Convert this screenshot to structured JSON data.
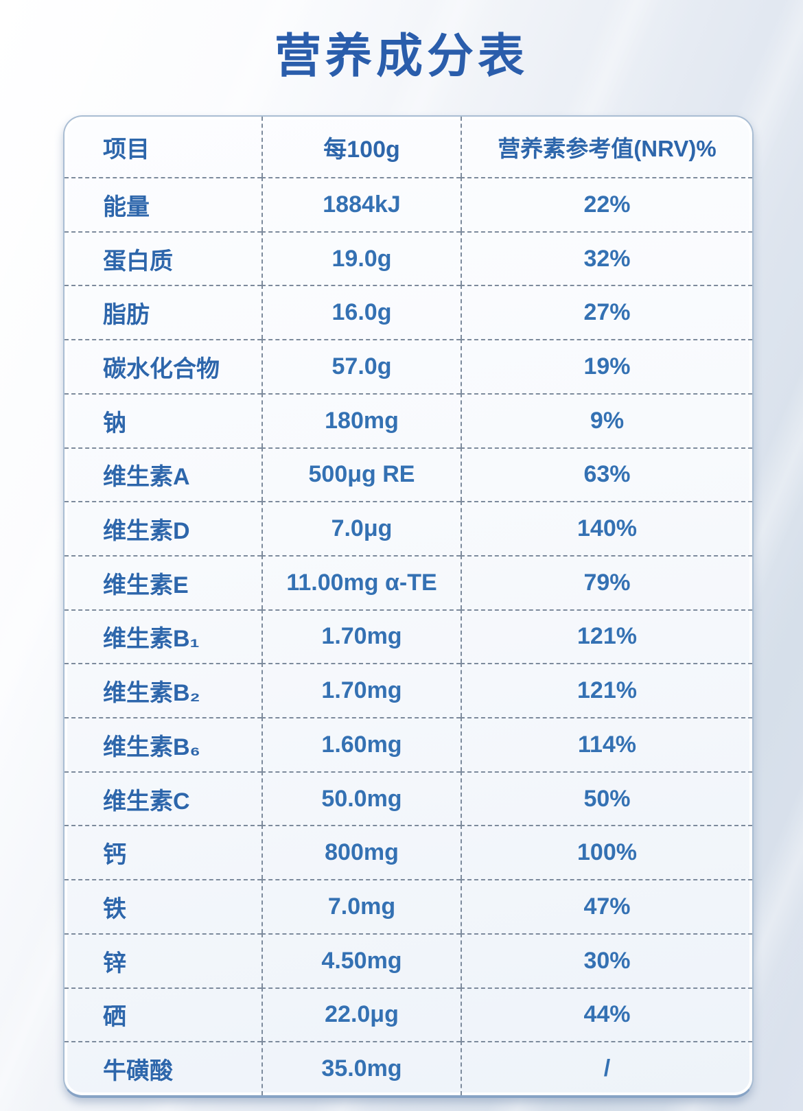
{
  "title": "营养成分表",
  "table": {
    "headers": [
      "项目",
      "每100g",
      "营养素参考值(NRV)%"
    ],
    "rows": [
      [
        "能量",
        "1884kJ",
        "22%"
      ],
      [
        "蛋白质",
        "19.0g",
        "32%"
      ],
      [
        "脂肪",
        "16.0g",
        "27%"
      ],
      [
        "碳水化合物",
        "57.0g",
        "19%"
      ],
      [
        "钠",
        "180mg",
        "9%"
      ],
      [
        "维生素A",
        "500μg RE",
        "63%"
      ],
      [
        "维生素D",
        "7.0μg",
        "140%"
      ],
      [
        "维生素E",
        "11.00mg α-TE",
        "79%"
      ],
      [
        "维生素B₁",
        "1.70mg",
        "121%"
      ],
      [
        "维生素B₂",
        "1.70mg",
        "121%"
      ],
      [
        "维生素B₆",
        "1.60mg",
        "114%"
      ],
      [
        "维生素C",
        "50.0mg",
        "50%"
      ],
      [
        "钙",
        "800mg",
        "100%"
      ],
      [
        "铁",
        "7.0mg",
        "47%"
      ],
      [
        "锌",
        "4.50mg",
        "30%"
      ],
      [
        "硒",
        "22.0μg",
        "44%"
      ],
      [
        "牛磺酸",
        "35.0mg",
        "/"
      ]
    ]
  },
  "colors": {
    "title_blue": "#2a5dab",
    "label_blue": "#2d66ab",
    "value_blue": "#3471b3",
    "dash": "#7c8a9c",
    "table_border": "#a9bdd3",
    "table_border_bottom": "#87a3c5"
  }
}
